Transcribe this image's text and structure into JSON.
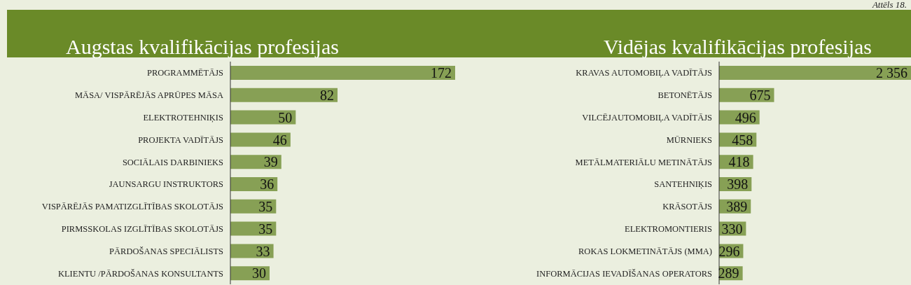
{
  "chart_data": [
    {
      "type": "bar",
      "orientation": "horizontal",
      "title": "Augstas kvalifikācijas profesijas",
      "annotations": [
        "Attēls 18."
      ],
      "categories": [
        "PROGRAMMĒTĀJS",
        "MĀSA/ VISPĀRĒJĀS APRŪPES MĀSA",
        "ELEKTROTEHNIĶIS",
        "PROJEKTA VADĪTĀJS",
        "SOCIĀLAIS DARBINIEKS",
        "JAUNSARGU INSTRUKTORS",
        "VISPĀRĒJĀS PAMATIZGLĪTĪBAS SKOLOTĀJS",
        "PIRMSSKOLAS IZGLĪTĪBAS SKOLOTĀJS",
        "PĀRDOŠANAS SPECIĀLISTS",
        "KLIENTU /PĀRDOŠANAS KONSULTANTS"
      ],
      "values": [
        172,
        82,
        50,
        46,
        39,
        36,
        35,
        35,
        33,
        30
      ],
      "color": "#87a055",
      "data_labels": true,
      "grid": false,
      "legend": false
    },
    {
      "type": "bar",
      "orientation": "horizontal",
      "title": "Vidējas kvalifikācijas profesijas",
      "categories": [
        "KRAVAS AUTOMOBIĻA VADĪTĀJS",
        "BETONĒTĀJS",
        "VILCĒJAUTOMOBIĻA VADĪTĀJS",
        "MŪRNIEKS",
        "METĀLMATERIĀLU METINĀTĀJS",
        "SANTEHNIĶIS",
        "KRĀSOTĀJS",
        "ELEKTROMONTIERIS",
        "ROKAS LOKMETINĀTĀJS (MMA)",
        "INFORMĀCIJAS IEVADĪŠANAS OPERATORS"
      ],
      "values": [
        2356,
        675,
        496,
        458,
        418,
        398,
        389,
        330,
        296,
        289
      ],
      "value_labels": [
        "2 356",
        "675",
        "496",
        "458",
        "418",
        "398",
        "389",
        "330",
        "296",
        "289"
      ],
      "color": "#87a055",
      "grid": false,
      "legend": false
    }
  ]
}
